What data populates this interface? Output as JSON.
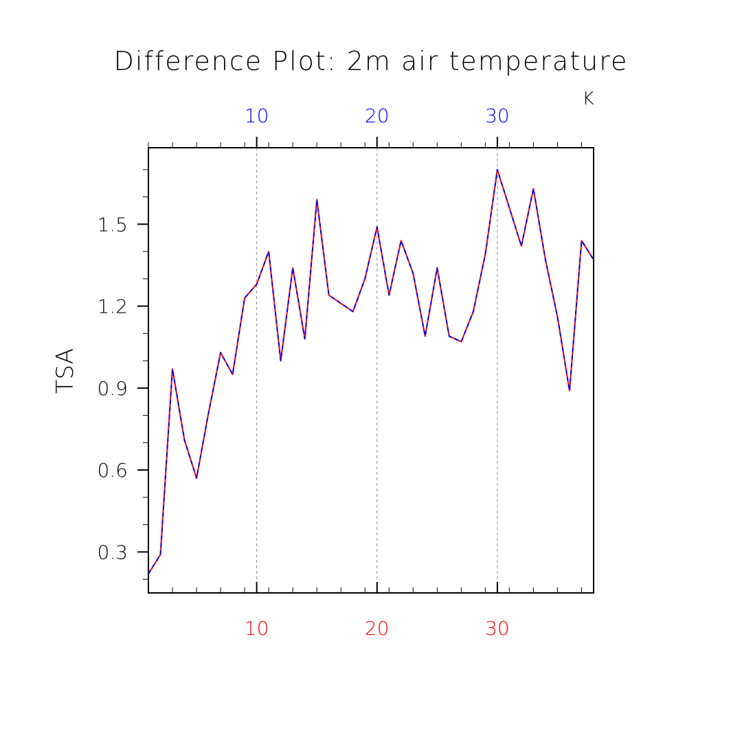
{
  "chart_data": {
    "type": "line",
    "title": "Difference Plot: 2m air temperature",
    "ylabel": "TSA",
    "units_label": "K",
    "xlim": [
      1,
      38
    ],
    "ylim": [
      0.15,
      1.78
    ],
    "x_ticks": [
      10,
      20,
      30
    ],
    "y_ticks": [
      "0.3",
      "0.6",
      "0.9",
      "1.2",
      "1.5"
    ],
    "grid": "dashed vertical at major x ticks",
    "colors": {
      "bottom_axis": "#ff0000",
      "top_axis": "#0000ff",
      "axes": "#000000",
      "grid": "#888888"
    },
    "x": [
      1,
      2,
      3,
      4,
      5,
      6,
      7,
      8,
      9,
      10,
      11,
      12,
      13,
      14,
      15,
      16,
      17,
      18,
      19,
      20,
      21,
      22,
      23,
      24,
      25,
      26,
      27,
      28,
      29,
      30,
      31,
      32,
      33,
      34,
      35,
      36,
      37,
      38
    ],
    "series": [
      {
        "color": "#ff0000",
        "style": "solid",
        "values": [
          0.22,
          0.29,
          0.97,
          0.71,
          0.57,
          0.81,
          1.03,
          0.95,
          1.23,
          1.28,
          1.4,
          1.0,
          1.34,
          1.08,
          1.59,
          1.24,
          1.21,
          1.18,
          1.3,
          1.49,
          1.24,
          1.44,
          1.32,
          1.09,
          1.34,
          1.09,
          1.07,
          1.18,
          1.39,
          1.7,
          1.56,
          1.42,
          1.63,
          1.37,
          1.16,
          0.89,
          1.44,
          1.37
        ]
      },
      {
        "color": "#0000ff",
        "style": "dashed",
        "values": [
          0.22,
          0.29,
          0.97,
          0.71,
          0.57,
          0.81,
          1.03,
          0.95,
          1.23,
          1.28,
          1.4,
          1.0,
          1.34,
          1.08,
          1.59,
          1.24,
          1.21,
          1.18,
          1.3,
          1.49,
          1.24,
          1.44,
          1.32,
          1.09,
          1.34,
          1.09,
          1.07,
          1.18,
          1.39,
          1.7,
          1.56,
          1.42,
          1.63,
          1.37,
          1.16,
          0.89,
          1.44,
          1.37
        ]
      }
    ]
  }
}
